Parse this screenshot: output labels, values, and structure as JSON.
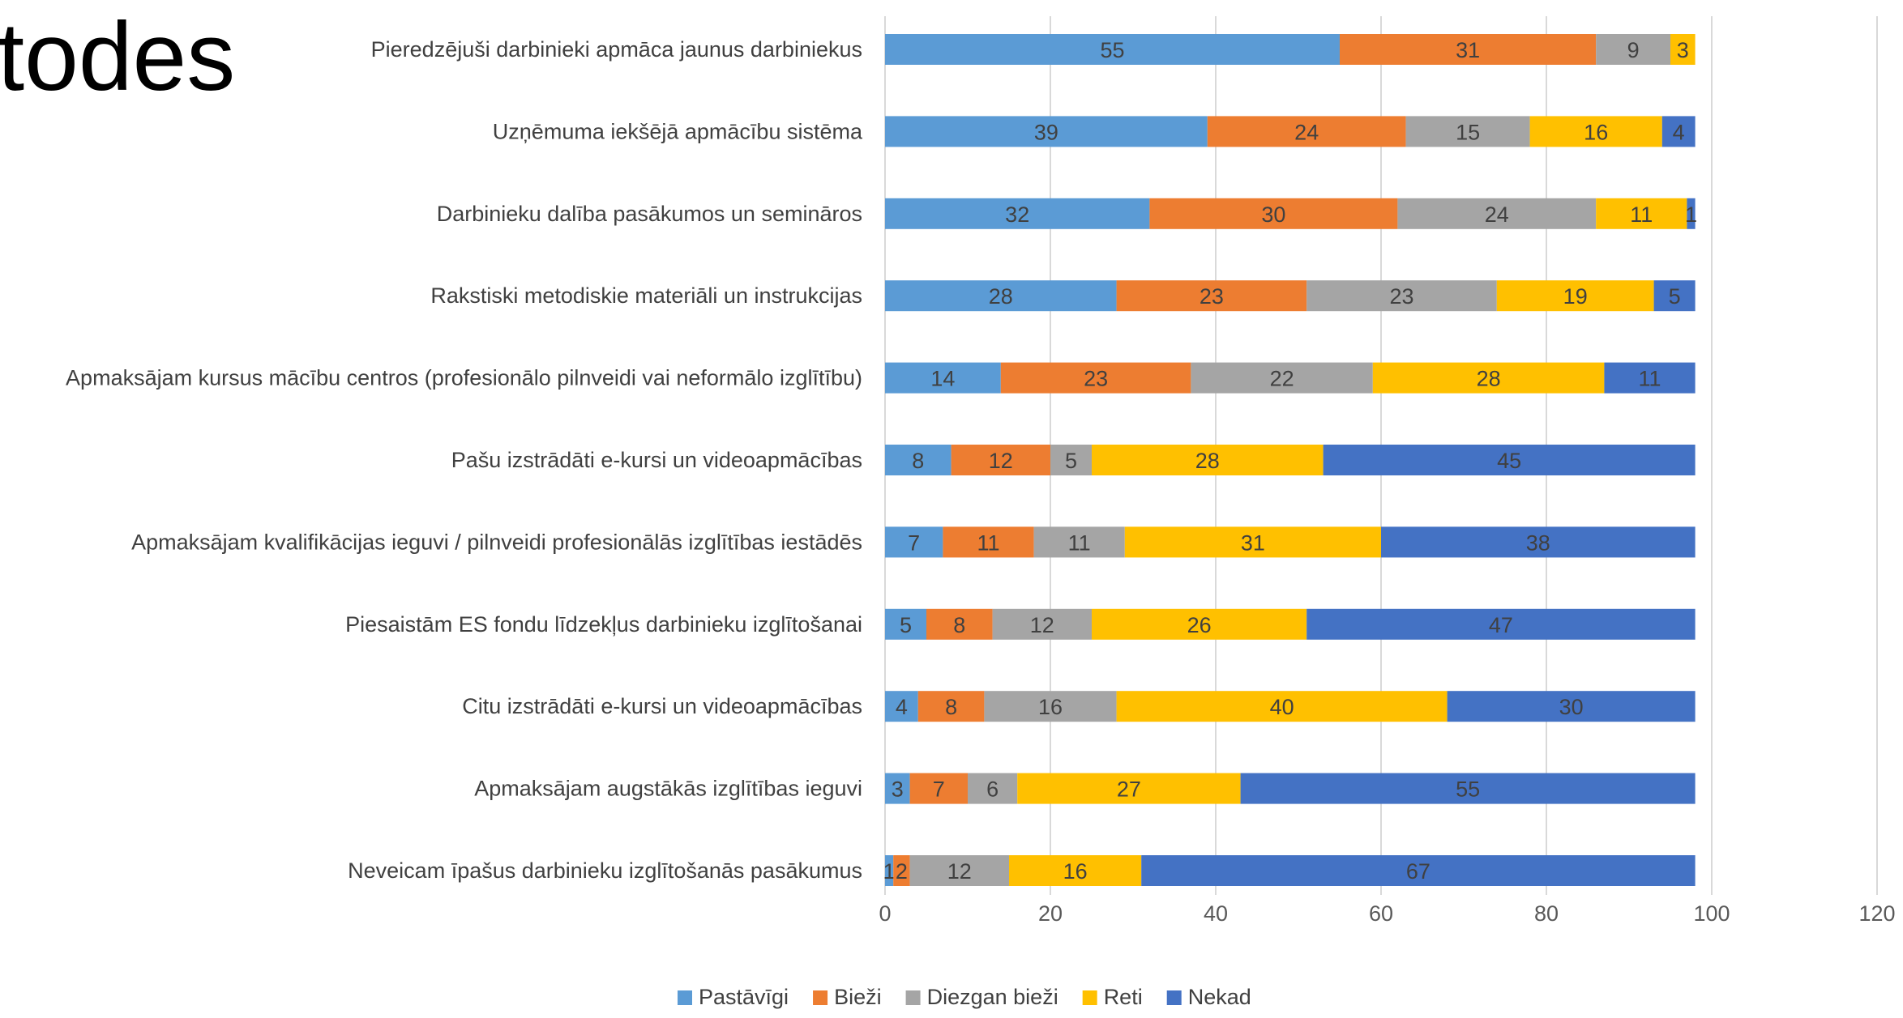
{
  "slide": {
    "title_fragment": "etodes"
  },
  "chart_data": {
    "type": "bar",
    "orientation": "horizontal",
    "stacked": true,
    "categories": [
      "Pieredzējuši darbinieki apmāca jaunus darbiniekus",
      "Uzņēmuma iekšējā apmācību sistēma",
      "Darbinieku dalība pasākumos un semināros",
      "Rakstiski metodiskie materiāli un instrukcijas",
      "Apmaksājam kursus  mācību centros (profesionālo pilnveidi vai neformālo izglītību)",
      "Pašu izstrādāti e-kursi un videoapmācības",
      "Apmaksājam kvalifikācijas ieguvi / pilnveidi profesionālās izglītības iestādēs",
      "Piesaistām ES fondu līdzekļus darbinieku izglītošanai",
      "Citu izstrādāti e-kursi un videoapmācības",
      "Apmaksājam augstākās izglītības ieguvi",
      "Neveicam īpašus darbinieku izglītošanās pasākumus"
    ],
    "series": [
      {
        "name": "Pastāvīgi",
        "color": "#5B9BD5",
        "values": [
          55,
          39,
          32,
          28,
          14,
          8,
          7,
          5,
          4,
          3,
          1
        ]
      },
      {
        "name": "Bieži",
        "color": "#ED7D31",
        "values": [
          31,
          24,
          30,
          23,
          23,
          12,
          11,
          8,
          8,
          7,
          2
        ]
      },
      {
        "name": "Diezgan bieži",
        "color": "#A5A5A5",
        "values": [
          9,
          15,
          24,
          23,
          22,
          5,
          11,
          12,
          16,
          6,
          12
        ]
      },
      {
        "name": "Reti",
        "color": "#FFC000",
        "values": [
          3,
          16,
          11,
          19,
          28,
          28,
          31,
          26,
          40,
          27,
          16
        ]
      },
      {
        "name": "Nekad",
        "color": "#4472C4",
        "values": [
          0,
          4,
          1,
          5,
          11,
          45,
          38,
          47,
          30,
          55,
          67
        ]
      }
    ],
    "xlim": [
      0,
      120
    ],
    "xticks": [
      "0",
      "20",
      "40",
      "60",
      "80",
      "100",
      "120"
    ],
    "grid": true,
    "legend": "bottom"
  }
}
